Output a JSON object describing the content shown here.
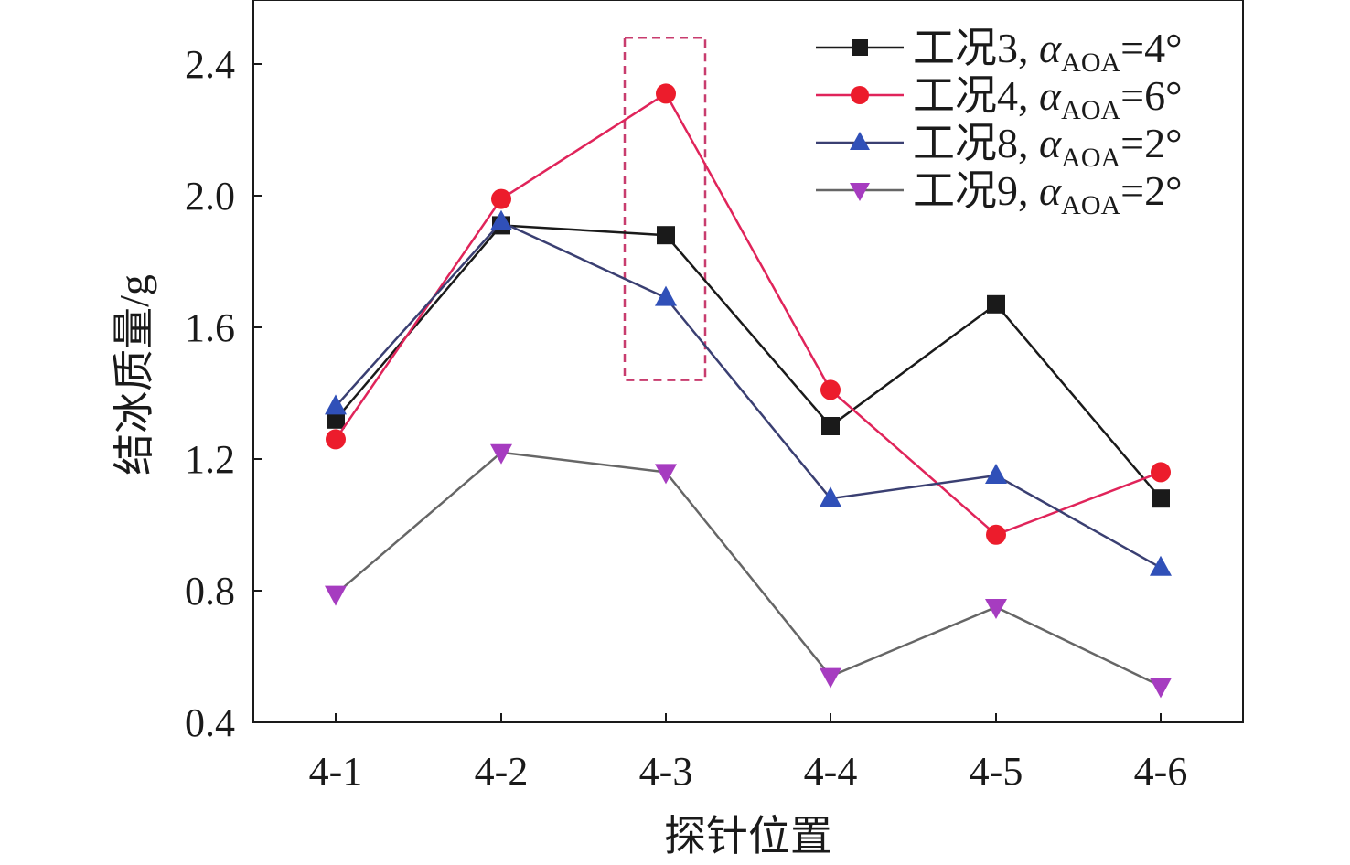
{
  "chart_data": {
    "type": "line",
    "title": "",
    "xlabel": "探针位置",
    "ylabel": "结冰质量/g",
    "categories": [
      "4-1",
      "4-2",
      "4-3",
      "4-4",
      "4-5",
      "4-6"
    ],
    "ylim": [
      0.4,
      2.6
    ],
    "yticks": [
      0.4,
      0.8,
      1.2,
      1.6,
      2.0,
      2.4
    ],
    "ytick_labels": [
      "0.4",
      "0.8",
      "1.2",
      "1.6",
      "2.0",
      "2.4"
    ],
    "grid": false,
    "legend_position": "top-right",
    "series": [
      {
        "name": "工况3, αAOA=4°",
        "label_prefix": "工况3, ",
        "label_symbol": "α",
        "label_sub": "AOA",
        "label_suffix": "=4°",
        "marker": "square",
        "line_color": "#1a1a1a",
        "marker_color": "#1a1a1a",
        "values": [
          1.32,
          1.91,
          1.88,
          1.3,
          1.67,
          1.08
        ]
      },
      {
        "name": "工况4, αAOA=6°",
        "label_prefix": "工况4, ",
        "label_symbol": "α",
        "label_sub": "AOA",
        "label_suffix": "=6°",
        "marker": "circle",
        "line_color": "#e0245a",
        "marker_color": "#ec1c2c",
        "values": [
          1.26,
          1.99,
          2.31,
          1.41,
          0.97,
          1.16
        ]
      },
      {
        "name": "工况8, αAOA=2°",
        "label_prefix": "工况8, ",
        "label_symbol": "α",
        "label_sub": "AOA",
        "label_suffix": "=2°",
        "marker": "triangle-up",
        "line_color": "#3a3f72",
        "marker_color": "#3050b8",
        "values": [
          1.36,
          1.92,
          1.69,
          1.08,
          1.15,
          0.87
        ]
      },
      {
        "name": "工况9, αAOA=2°",
        "label_prefix": "工况9, ",
        "label_symbol": "α",
        "label_sub": "AOA",
        "label_suffix": "=2°",
        "marker": "triangle-down",
        "line_color": "#666666",
        "marker_color": "#a63cc0",
        "values": [
          0.79,
          1.22,
          1.16,
          0.54,
          0.75,
          0.51
        ]
      }
    ],
    "annotations": [
      {
        "type": "dashed-box",
        "category": "4-3",
        "y_range": [
          1.44,
          2.48
        ],
        "color": "#c83c6e"
      }
    ]
  }
}
